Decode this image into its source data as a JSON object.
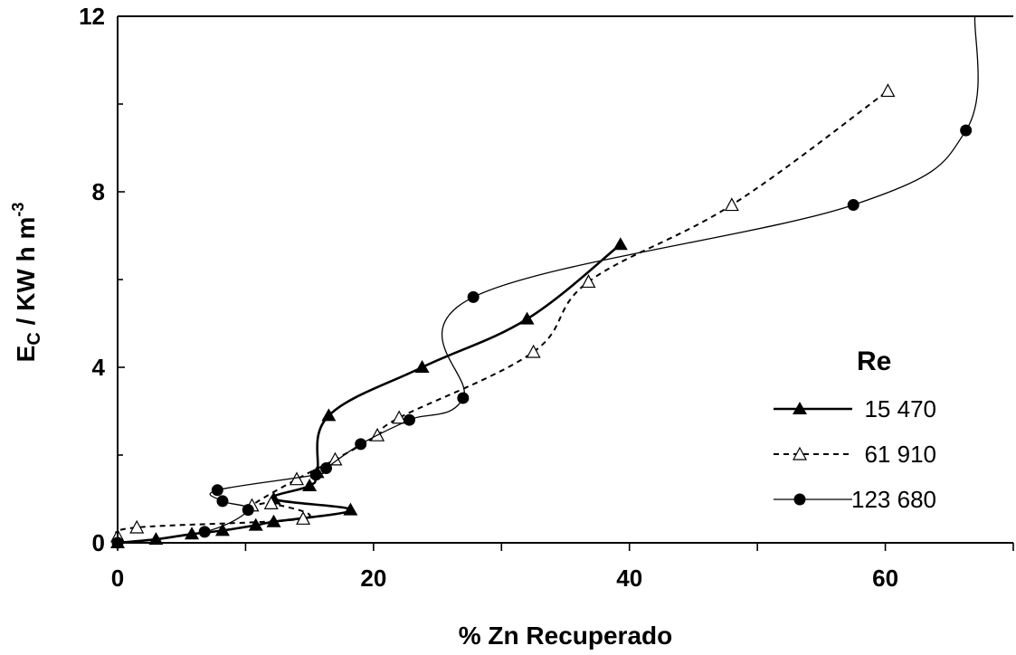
{
  "chart_data": {
    "type": "line",
    "xlabel": "% Zn Recuperado",
    "ylabel_main": "E",
    "ylabel_sub": "C",
    "ylabel_rest": " / KW h m",
    "ylabel_sup": "-3",
    "xlim": [
      0,
      70
    ],
    "ylim": [
      0,
      12
    ],
    "x_ticks": [
      0,
      20,
      40,
      60
    ],
    "y_ticks": [
      0,
      4,
      8,
      12
    ],
    "grid": false,
    "legend_title": "Re",
    "legend_position": "right",
    "series": [
      {
        "name": "15 470",
        "marker": "filled-triangle",
        "line": "solid-thick",
        "color": "#000000",
        "x": [
          0,
          3.0,
          5.8,
          8.2,
          10.8,
          12.2,
          18.2,
          12.2,
          15.0,
          15.6,
          16.5,
          23.8,
          32.0,
          39.3
        ],
        "y": [
          0,
          0.08,
          0.2,
          0.28,
          0.4,
          0.48,
          0.75,
          1.0,
          1.3,
          1.6,
          2.9,
          4.0,
          5.1,
          6.8
        ]
      },
      {
        "name": "61 910",
        "marker": "open-triangle",
        "line": "dashed",
        "color": "#000000",
        "x": [
          0,
          1.5,
          14.5,
          12.0,
          10.5,
          14.0,
          17.0,
          20.3,
          22.0,
          32.5,
          36.8,
          48.0,
          60.2
        ],
        "y": [
          0.15,
          0.35,
          0.55,
          0.9,
          0.85,
          1.45,
          1.9,
          2.45,
          2.85,
          4.35,
          5.95,
          7.7,
          10.3
        ]
      },
      {
        "name": "123 680",
        "marker": "filled-circle",
        "line": "solid-thin",
        "color": "#000000",
        "x": [
          0,
          6.8,
          10.2,
          8.2,
          7.8,
          15.5,
          16.3,
          19.0,
          22.8,
          27.0,
          27.8,
          57.5,
          66.3
        ],
        "y": [
          0,
          0.25,
          0.75,
          0.95,
          1.2,
          1.55,
          1.7,
          2.25,
          2.8,
          3.3,
          5.6,
          7.7,
          9.4
        ]
      }
    ],
    "series_123680_tail": {
      "x": [
        66.3,
        67.0
      ],
      "y": [
        9.4,
        12.0
      ]
    }
  }
}
